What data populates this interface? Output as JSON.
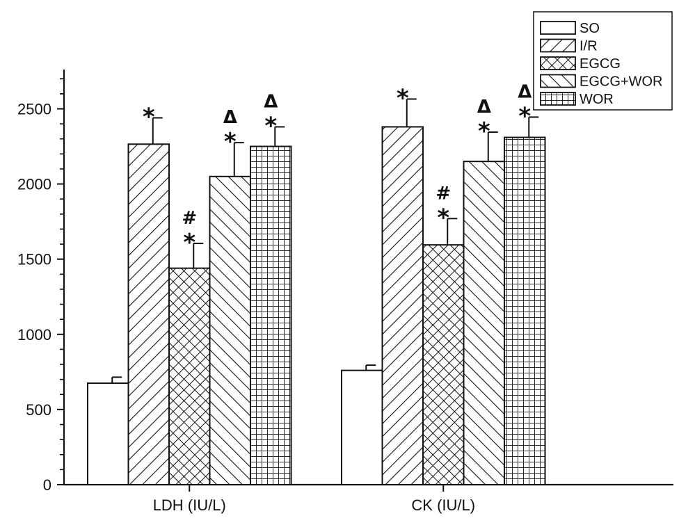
{
  "chart_data": {
    "type": "bar",
    "categories": [
      "LDH (IU/L)",
      "CK (IU/L)"
    ],
    "series": [
      {
        "name": "SO",
        "pattern": "blank",
        "values": [
          675,
          760
        ],
        "errors": [
          40,
          35
        ]
      },
      {
        "name": "I/R",
        "pattern": "diag-right",
        "values": [
          2265,
          2380
        ],
        "errors": [
          175,
          185
        ]
      },
      {
        "name": "EGCG",
        "pattern": "crosshatch",
        "values": [
          1440,
          1595
        ],
        "errors": [
          165,
          175
        ]
      },
      {
        "name": "EGCG+WOR",
        "pattern": "diag-left",
        "values": [
          2050,
          2150
        ],
        "errors": [
          225,
          195
        ]
      },
      {
        "name": "WOR",
        "pattern": "grid",
        "values": [
          2250,
          2310
        ],
        "errors": [
          130,
          135
        ]
      }
    ],
    "annotations": [
      [
        [
          ""
        ],
        [
          "*"
        ],
        [
          "#",
          "*"
        ],
        [
          "Δ",
          "*"
        ],
        [
          "Δ",
          "*"
        ]
      ],
      [
        [
          ""
        ],
        [
          "*"
        ],
        [
          "#",
          "*"
        ],
        [
          "Δ",
          "*"
        ],
        [
          "Δ",
          "*"
        ]
      ]
    ],
    "yticks": [
      "0",
      "500",
      "1000",
      "1500",
      "2000",
      "2500"
    ],
    "ylim": [
      0,
      2750
    ],
    "title": "",
    "xlabel": "",
    "ylabel": "",
    "legend_position": "top-right",
    "grid": false,
    "colors": {
      "line": "#111111",
      "fill": "#ffffff"
    }
  }
}
